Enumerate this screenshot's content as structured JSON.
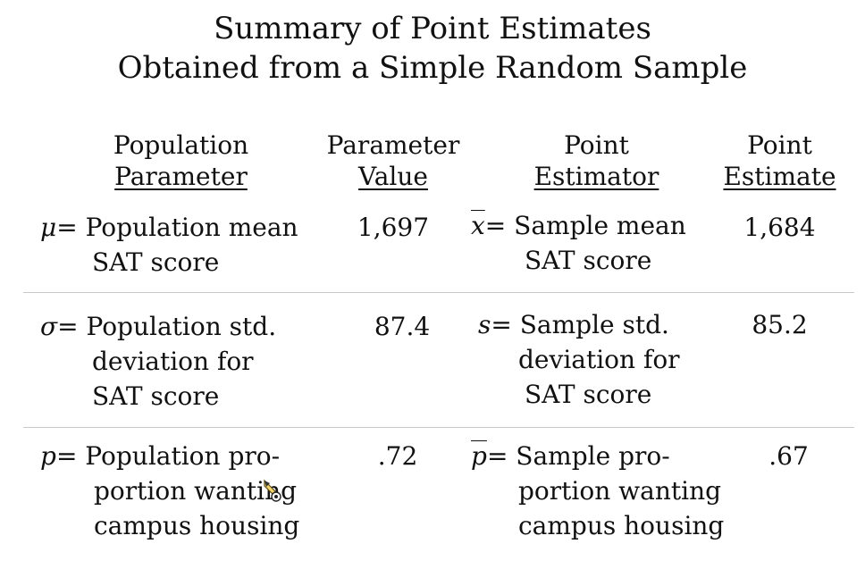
{
  "title": {
    "line1": "Summary of Point Estimates",
    "line2": "Obtained from a Simple Random Sample"
  },
  "headers": {
    "col1": {
      "line1": "Population",
      "line2": "Parameter"
    },
    "col2": {
      "line1": "Parameter",
      "line2": "Value"
    },
    "col3": {
      "line1": "Point",
      "line2": "Estimator"
    },
    "col4": {
      "line1": "Point",
      "line2": "Estimate"
    }
  },
  "rows": [
    {
      "param_symbol": "μ",
      "param_lines": [
        "= Population mean",
        "SAT score"
      ],
      "value": "1,697",
      "estimator_symbol": "x",
      "estimator_lines": [
        "= Sample mean",
        "SAT score"
      ],
      "estimate": "1,684"
    },
    {
      "param_symbol": "σ",
      "param_lines": [
        "= Population std.",
        "deviation for",
        "SAT score"
      ],
      "value": "87.4",
      "estimator_symbol": "s",
      "estimator_lines": [
        "= Sample std.",
        "deviation for",
        "SAT score"
      ],
      "estimate": "85.2"
    },
    {
      "param_symbol": "p",
      "param_lines": [
        "= Population pro-",
        "portion wanting",
        "campus housing"
      ],
      "value": ".72",
      "estimator_symbol": "p",
      "estimator_lines": [
        "= Sample pro-",
        "portion wanting",
        "campus housing"
      ],
      "estimate": ".67"
    }
  ],
  "icons": {
    "cursor": "pencil-cursor-icon"
  }
}
